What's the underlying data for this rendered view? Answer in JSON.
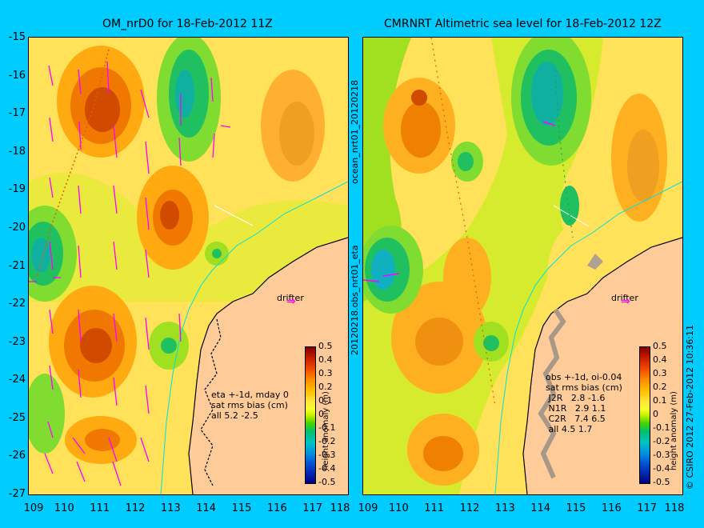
{
  "left_panel": {
    "title": "OM_nrD0 for 18-Feb-2012 11Z",
    "annotation": "eta +-1d, mday 0\nsat rms bias (cm)\nall 5.2 -2.5",
    "drifter_label": "drifter"
  },
  "right_panel": {
    "title": "CMRNRT Altimetric sea level  for 18-Feb-2012 12Z",
    "annotation": "obs +-1d, oi-0.04\nsat rms bias (cm)\n J2R   2.8 -1.6\n N1R   2.9 1.1\n C2R   7.4 6.5\n all 4.5 1.7",
    "drifter_label": "drifter",
    "side_label_top": "ocean_nrt01_20120218",
    "side_label_bottom": "20120218.obs_nrt01_eta"
  },
  "y_ticks": [
    "-15",
    "-16",
    "-17",
    "-18",
    "-19",
    "-20",
    "-21",
    "-22",
    "-23",
    "-24",
    "-25",
    "-26",
    "-27"
  ],
  "x_ticks": [
    "109",
    "110",
    "111",
    "112",
    "113",
    "114",
    "115",
    "116",
    "117",
    "118"
  ],
  "colorbar": {
    "label": "height anomaly (m)",
    "ticks": [
      "0.5",
      "0.4",
      "0.3",
      "0.2",
      "0.1",
      "0",
      "-0.1",
      "-0.2",
      "-0.3",
      "-0.4",
      "-0.5"
    ]
  },
  "credit": "© CSIRO 2012  27-Feb-2012 10:36:11",
  "colors": {
    "background": "#00ccff",
    "land": "#ffcc99",
    "vectors": "#ff00ff",
    "coast_isobath": "#00e0e0"
  }
}
